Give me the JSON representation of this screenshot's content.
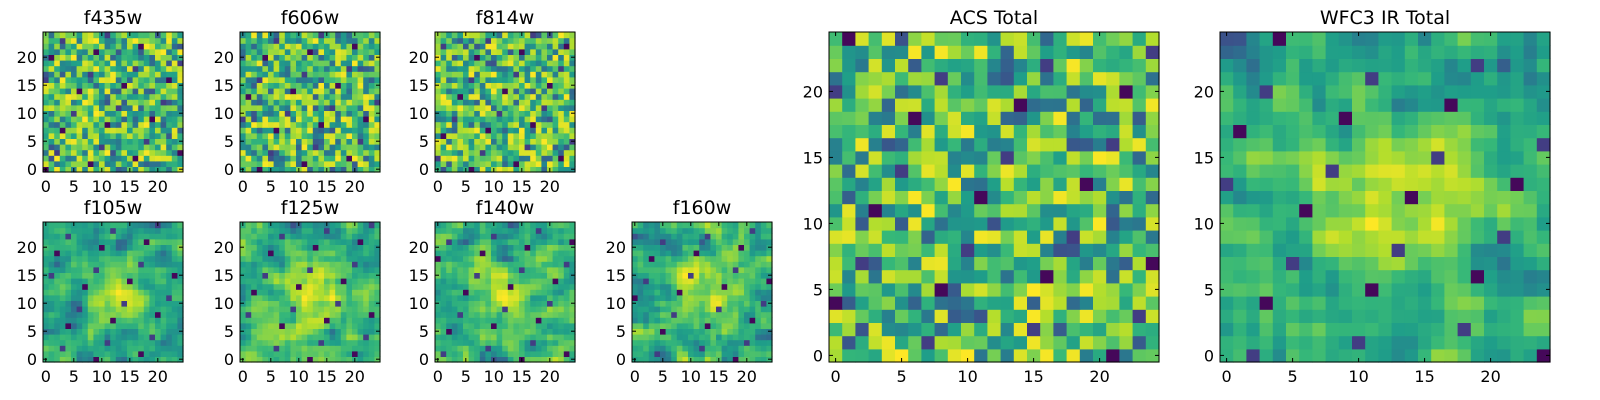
{
  "figure": {
    "colormap": "viridis"
  },
  "chart_data": [
    {
      "type": "heatmap",
      "title": "f435w",
      "xticks": [
        0,
        5,
        10,
        15,
        20
      ],
      "yticks": [
        0,
        5,
        10,
        15,
        20
      ],
      "xlim": [
        0,
        24
      ],
      "ylim": [
        0,
        24
      ],
      "grid": false,
      "texture": "noisy"
    },
    {
      "type": "heatmap",
      "title": "f606w",
      "xticks": [
        0,
        5,
        10,
        15,
        20
      ],
      "yticks": [
        0,
        5,
        10,
        15,
        20
      ],
      "xlim": [
        0,
        24
      ],
      "ylim": [
        0,
        24
      ],
      "grid": false,
      "texture": "noisy"
    },
    {
      "type": "heatmap",
      "title": "f814w",
      "xticks": [
        0,
        5,
        10,
        15,
        20
      ],
      "yticks": [
        0,
        5,
        10,
        15,
        20
      ],
      "xlim": [
        0,
        24
      ],
      "ylim": [
        0,
        24
      ],
      "grid": false,
      "texture": "noisy"
    },
    {
      "type": "heatmap",
      "title": "f105w",
      "xticks": [
        0,
        5,
        10,
        15,
        20
      ],
      "yticks": [
        0,
        5,
        10,
        15,
        20
      ],
      "xlim": [
        0,
        24
      ],
      "ylim": [
        0,
        24
      ],
      "grid": false,
      "texture": "smooth"
    },
    {
      "type": "heatmap",
      "title": "f125w",
      "xticks": [
        0,
        5,
        10,
        15,
        20
      ],
      "yticks": [
        0,
        5,
        10,
        15,
        20
      ],
      "xlim": [
        0,
        24
      ],
      "ylim": [
        0,
        24
      ],
      "grid": false,
      "texture": "smooth"
    },
    {
      "type": "heatmap",
      "title": "f140w",
      "xticks": [
        0,
        5,
        10,
        15,
        20
      ],
      "yticks": [
        0,
        5,
        10,
        15,
        20
      ],
      "xlim": [
        0,
        24
      ],
      "ylim": [
        0,
        24
      ],
      "grid": false,
      "texture": "smooth"
    },
    {
      "type": "heatmap",
      "title": "f160w",
      "xticks": [
        0,
        5,
        10,
        15,
        20
      ],
      "yticks": [
        0,
        5,
        10,
        15,
        20
      ],
      "xlim": [
        0,
        24
      ],
      "ylim": [
        0,
        24
      ],
      "grid": false,
      "texture": "smooth"
    },
    {
      "type": "heatmap",
      "title": "ACS Total",
      "xticks": [
        0,
        5,
        10,
        15,
        20
      ],
      "yticks": [
        0,
        5,
        10,
        15,
        20
      ],
      "xlim": [
        0,
        24
      ],
      "ylim": [
        0,
        24
      ],
      "grid": false,
      "texture": "noisy"
    },
    {
      "type": "heatmap",
      "title": "WFC3 IR Total",
      "xticks": [
        0,
        5,
        10,
        15,
        20
      ],
      "yticks": [
        0,
        5,
        10,
        15,
        20
      ],
      "xlim": [
        0,
        24
      ],
      "ylim": [
        0,
        24
      ],
      "grid": false,
      "texture": "smooth"
    }
  ]
}
